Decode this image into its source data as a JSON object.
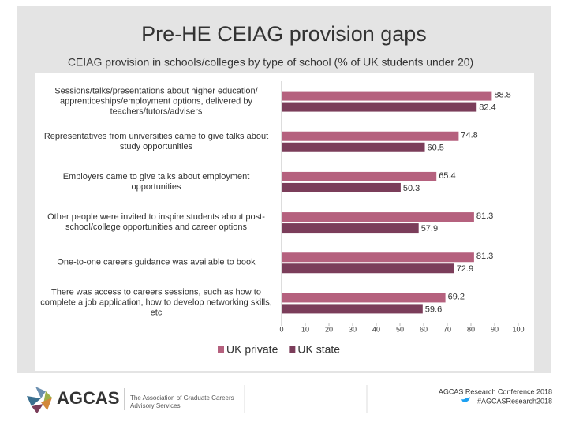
{
  "chart_data": {
    "type": "barh",
    "title": "Pre-HE CEIAG provision gaps",
    "subtitle": "CEIAG provision in schools/colleges by type of school (% of UK students under 20)",
    "categories": [
      "Sessions/talks/presentations about higher education/ apprenticeships/employment options, delivered by teachers/tutors/advisers",
      "Representatives from universities came to give talks about study opportunities",
      "Employers came to give talks about employment opportunities",
      "Other people were invited to inspire students about post-school/college opportunities and career options",
      "One-to-one careers guidance was available to book",
      "There was access to careers sessions, such as how to complete a job application, how to develop networking skills, etc"
    ],
    "series": [
      {
        "name": "UK private",
        "color": "#b5617e",
        "values": [
          88.8,
          74.8,
          65.4,
          81.3,
          81.3,
          69.2
        ]
      },
      {
        "name": "UK state",
        "color": "#7b3d5a",
        "values": [
          82.4,
          60.5,
          50.3,
          57.9,
          72.9,
          59.6
        ]
      }
    ],
    "xlim": [
      0,
      100
    ],
    "xticks": [
      0,
      10,
      20,
      30,
      40,
      50,
      60,
      70,
      80,
      90,
      100
    ],
    "legend": "bottom"
  },
  "footer": {
    "logo": "AGCAS",
    "organisation": "The Association of Graduate Careers Advisory Services",
    "conference": "AGCAS Research Conference 2018",
    "hashtag": "#AGCASResearch2018"
  }
}
